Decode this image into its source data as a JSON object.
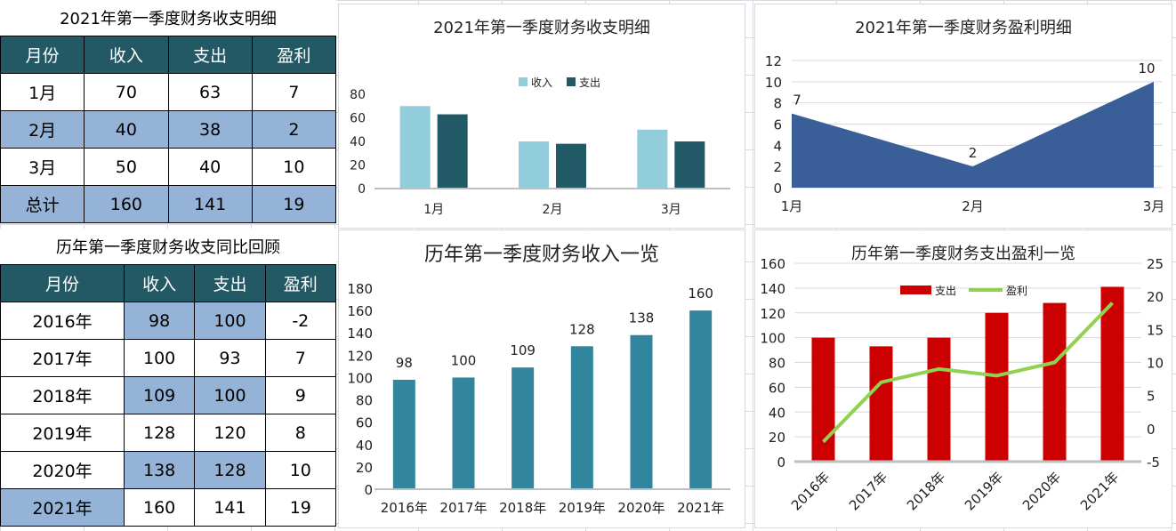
{
  "table1": {
    "title": "2021年第一季度财务收支明细",
    "headers": [
      "月份",
      "收入",
      "支出",
      "盈利"
    ],
    "rows": [
      [
        "1月",
        "70",
        "63",
        "7"
      ],
      [
        "2月",
        "40",
        "38",
        "2"
      ],
      [
        "3月",
        "50",
        "40",
        "10"
      ],
      [
        "总计",
        "160",
        "141",
        "19"
      ]
    ]
  },
  "table2": {
    "title": "历年第一季度财务收支同比回顾",
    "headers": [
      "月份",
      "收入",
      "支出",
      "盈利"
    ],
    "rows": [
      [
        "2016年",
        "98",
        "100",
        "-2"
      ],
      [
        "2017年",
        "100",
        "93",
        "7"
      ],
      [
        "2018年",
        "109",
        "100",
        "9"
      ],
      [
        "2019年",
        "128",
        "120",
        "8"
      ],
      [
        "2020年",
        "138",
        "128",
        "10"
      ],
      [
        "2021年",
        "160",
        "141",
        "19"
      ]
    ]
  },
  "chart_data": [
    {
      "type": "bar",
      "title": "2021年第一季度财务收支明细",
      "categories": [
        "1月",
        "2月",
        "3月"
      ],
      "series": [
        {
          "name": "收入",
          "values": [
            70,
            40,
            50
          ],
          "color": "#92cddc"
        },
        {
          "name": "支出",
          "values": [
            63,
            38,
            40
          ],
          "color": "#215967"
        }
      ],
      "ylim": [
        0,
        80
      ],
      "yticks": [
        "0",
        "20",
        "40",
        "60",
        "80"
      ],
      "legend": "top",
      "grid": false
    },
    {
      "type": "area",
      "title": "2021年第一季度财务盈利明细",
      "categories": [
        "1月",
        "2月",
        "3月"
      ],
      "values": [
        7,
        2,
        10
      ],
      "data_labels": [
        "7",
        "2",
        "10"
      ],
      "color": "#3a5f98",
      "ylim": [
        0,
        12
      ],
      "yticks": [
        "0",
        "2",
        "4",
        "6",
        "8",
        "10",
        "12"
      ],
      "grid": true
    },
    {
      "type": "bar",
      "title": "历年第一季度财务收入一览",
      "categories": [
        "2016年",
        "2017年",
        "2018年",
        "2019年",
        "2020年",
        "2021年"
      ],
      "values": [
        98,
        100,
        109,
        128,
        138,
        160
      ],
      "data_labels": [
        "98",
        "100",
        "109",
        "128",
        "138",
        "160"
      ],
      "color": "#31859c",
      "ylim": [
        0,
        180
      ],
      "yticks": [
        "0",
        "20",
        "40",
        "60",
        "80",
        "100",
        "120",
        "140",
        "160",
        "180"
      ],
      "grid": false
    },
    {
      "type": "bar+line",
      "title": "历年第一季度财务支出盈利一览",
      "categories": [
        "2016年",
        "2017年",
        "2018年",
        "2019年",
        "2020年",
        "2021年"
      ],
      "series": [
        {
          "name": "支出",
          "type": "bar",
          "axis": "left",
          "values": [
            100,
            93,
            100,
            120,
            128,
            141
          ],
          "color": "#cc0000"
        },
        {
          "name": "盈利",
          "type": "line",
          "axis": "right",
          "values": [
            -2,
            7,
            9,
            8,
            10,
            19
          ],
          "color": "#92d050"
        }
      ],
      "ylim": [
        0,
        160
      ],
      "yticks": [
        "0",
        "20",
        "40",
        "60",
        "80",
        "100",
        "120",
        "140",
        "160"
      ],
      "y2lim": [
        -5,
        25
      ],
      "y2ticks": [
        "-5",
        "0",
        "5",
        "10",
        "15",
        "20",
        "25"
      ],
      "legend": "top",
      "grid": true
    }
  ]
}
